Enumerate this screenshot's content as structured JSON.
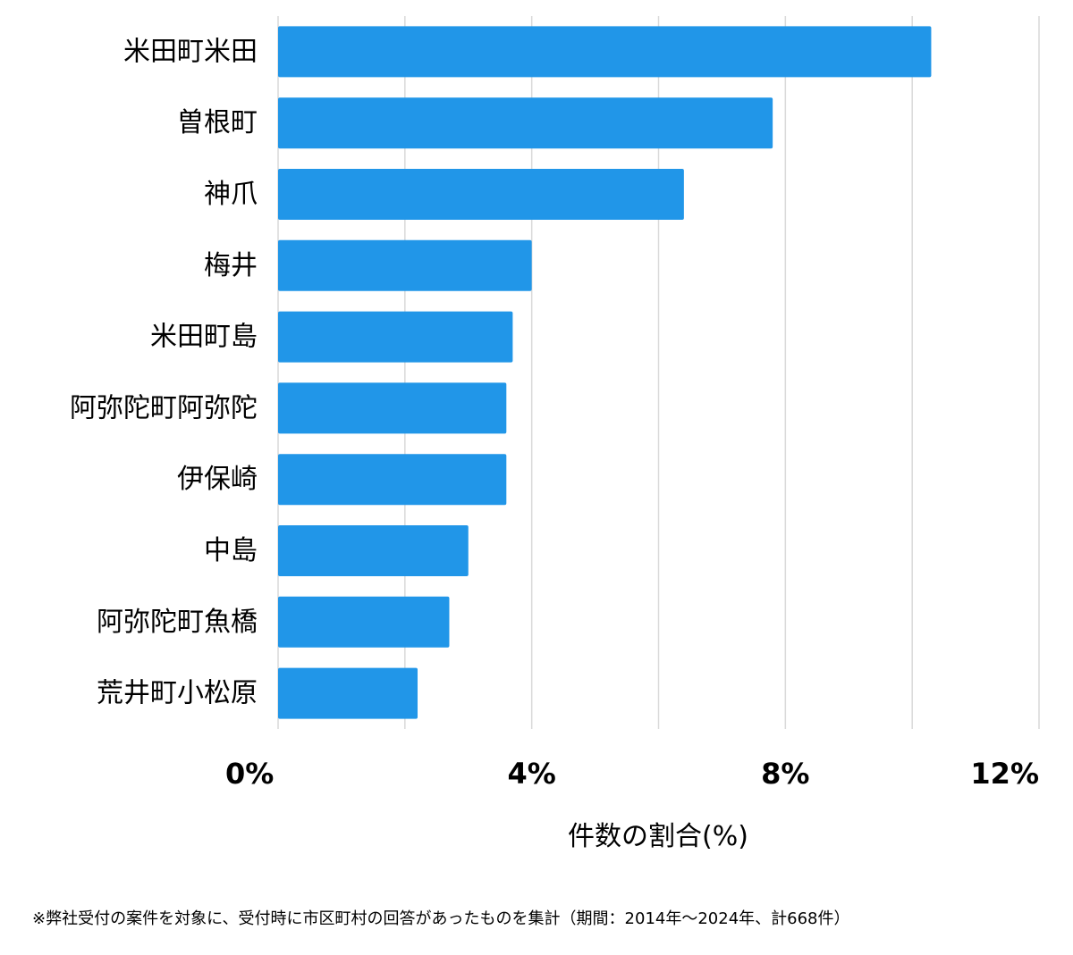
{
  "chart_data": {
    "type": "bar",
    "orientation": "horizontal",
    "categories": [
      "米田町米田",
      "曽根町",
      "神爪",
      "梅井",
      "米田町島",
      "阿弥陀町阿弥陀",
      "伊保崎",
      "中島",
      "阿弥陀町魚橋",
      "荒井町小松原"
    ],
    "values": [
      10.3,
      7.8,
      6.4,
      4.0,
      3.7,
      3.6,
      3.6,
      3.0,
      2.7,
      2.2
    ],
    "xlabel": "件数の割合(%)",
    "xlim": [
      0,
      12
    ],
    "x_ticks": [
      "0%",
      "4%",
      "8%",
      "12%"
    ],
    "x_tick_values": [
      0,
      4,
      8,
      12
    ],
    "grid_values": [
      0,
      2,
      4,
      6,
      8,
      10,
      12
    ],
    "grid": true,
    "bar_color": "#2196e8"
  },
  "footnote": "※弊社受付の案件を対象に、受付時に市区町村の回答があったものを集計（期間：2014年～2024年、計668件）"
}
